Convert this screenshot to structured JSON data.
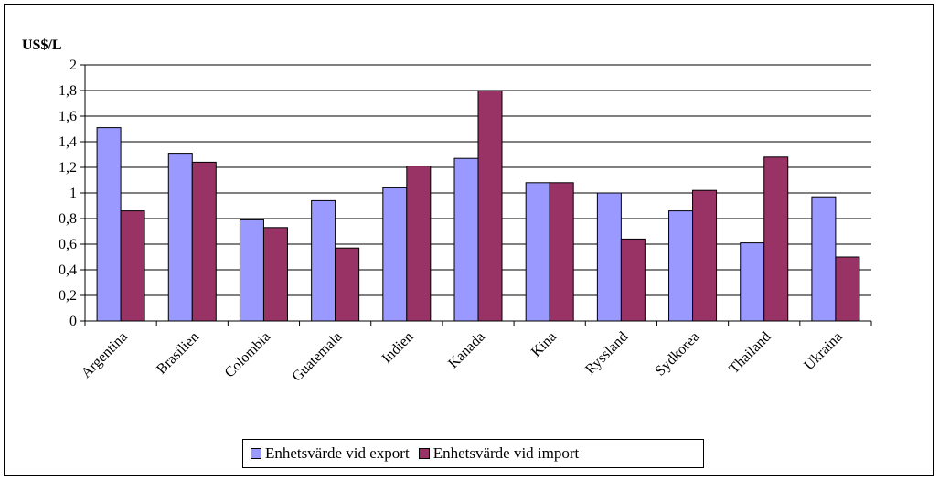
{
  "chart_data": {
    "type": "bar",
    "title": "",
    "ylabel": "US$/L",
    "xlabel": "",
    "ylim": [
      0,
      2
    ],
    "ytick_step": 0.2,
    "ytick_labels": [
      "0",
      "0,2",
      "0,4",
      "0,6",
      "0,8",
      "1",
      "1,2",
      "1,4",
      "1,6",
      "1,8",
      "2"
    ],
    "grid": true,
    "legend_position": "bottom",
    "categories": [
      "Argentina",
      "Brasilien",
      "Colombia",
      "Guatemala",
      "Indien",
      "Kanada",
      "Kina",
      "Ryssland",
      "Sydkorea",
      "Thailand",
      "Ukraina"
    ],
    "series": [
      {
        "name": "Enhetsvärde vid export",
        "color": "#9999ff",
        "values": [
          1.51,
          1.31,
          0.79,
          0.94,
          1.04,
          1.27,
          1.08,
          1.0,
          0.86,
          0.61,
          0.97
        ]
      },
      {
        "name": "Enhetsvärde vid import",
        "color": "#993366",
        "values": [
          0.86,
          1.24,
          0.73,
          0.57,
          1.21,
          1.8,
          1.08,
          0.64,
          1.02,
          1.28,
          0.5
        ]
      }
    ]
  }
}
